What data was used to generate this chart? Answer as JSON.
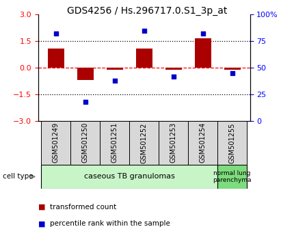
{
  "title": "GDS4256 / Hs.296717.0.S1_3p_at",
  "samples": [
    "GSM501249",
    "GSM501250",
    "GSM501251",
    "GSM501252",
    "GSM501253",
    "GSM501254",
    "GSM501255"
  ],
  "transformed_count": [
    1.1,
    -0.7,
    -0.1,
    1.1,
    -0.1,
    1.65,
    -0.1
  ],
  "percentile_rank": [
    82,
    18,
    38,
    85,
    42,
    82,
    45
  ],
  "ylim_left": [
    -3,
    3
  ],
  "ylim_right": [
    0,
    100
  ],
  "yticks_left": [
    -3,
    -1.5,
    0,
    1.5,
    3
  ],
  "yticks_right": [
    0,
    25,
    50,
    75,
    100
  ],
  "ytick_labels_right": [
    "0",
    "25",
    "50",
    "75",
    "100%"
  ],
  "bar_color": "#aa0000",
  "scatter_color": "#0000cc",
  "group1_label": "caseous TB granulomas",
  "group1_color": "#c8f5c8",
  "group2_label": "normal lung\nparenchyma",
  "group2_color": "#7ddc7d",
  "cell_type_label": "cell type",
  "legend_bar_label": "transformed count",
  "legend_scatter_label": "percentile rank within the sample",
  "title_fontsize": 10,
  "tick_fontsize": 8,
  "label_fontsize": 7
}
